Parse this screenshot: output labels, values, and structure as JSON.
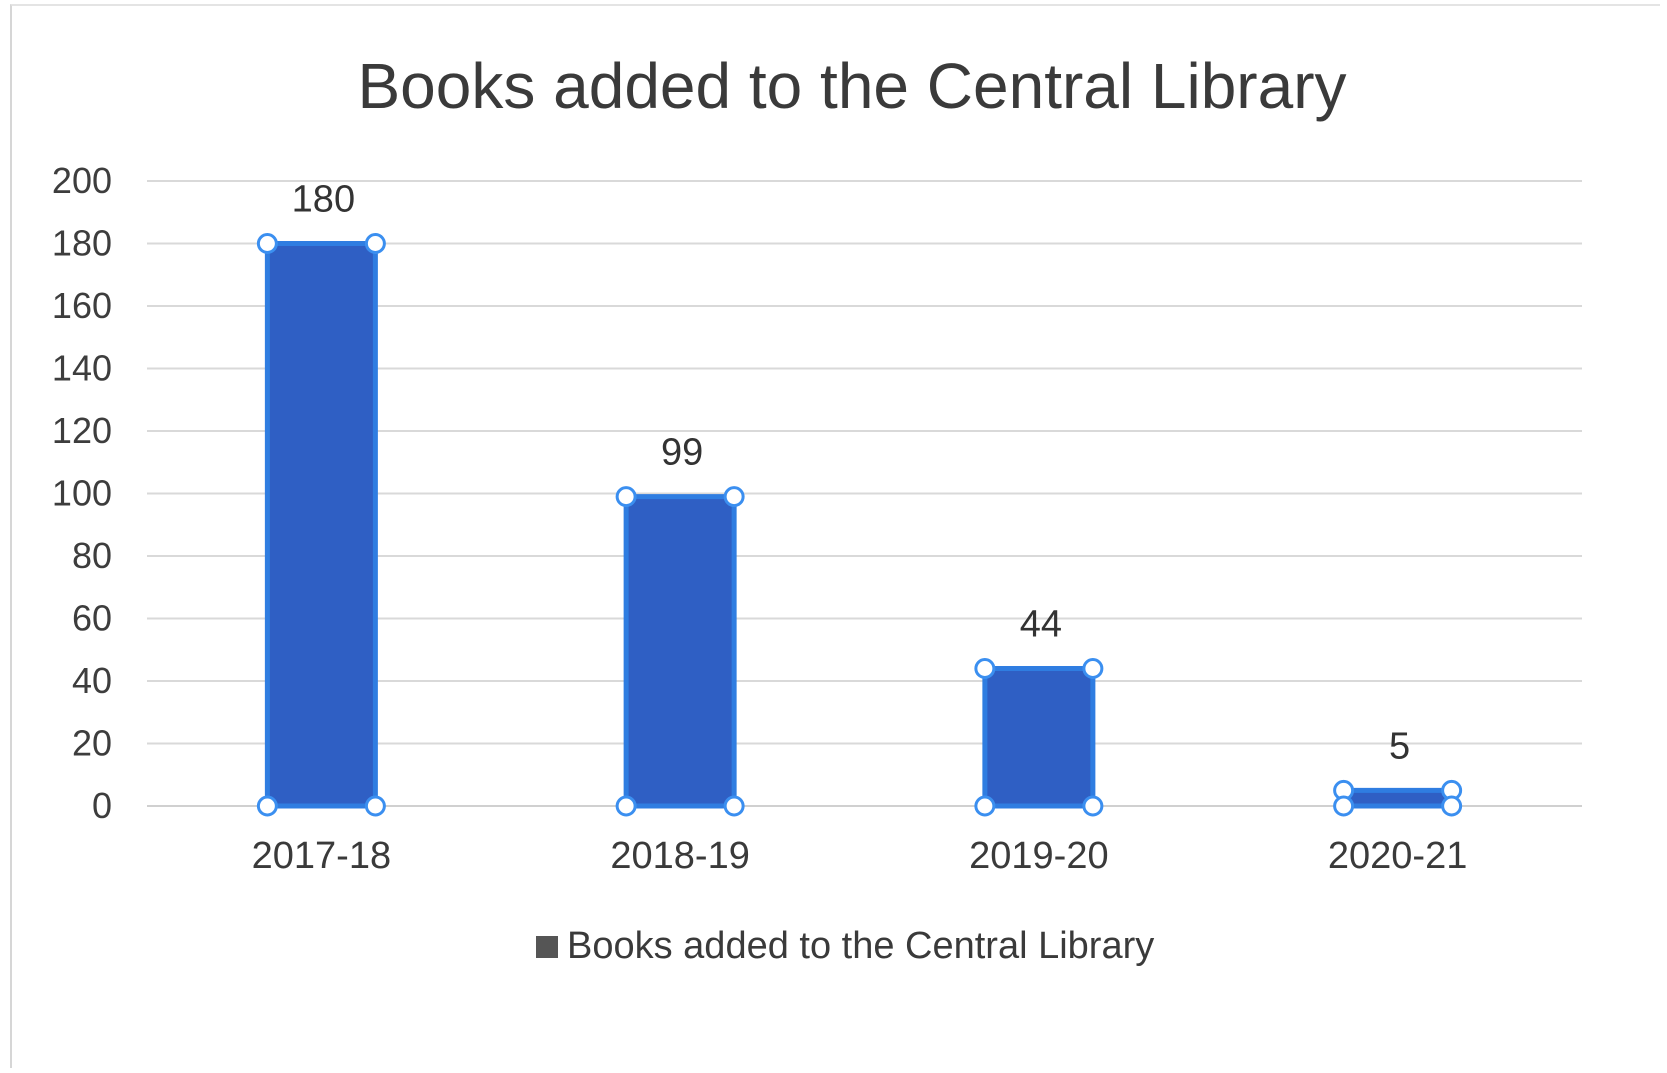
{
  "colors": {
    "bar_fill": "#2f5fc4",
    "bar_outline": "#2f7de1",
    "handle": "#3b8ff0",
    "legend_swatch": "#555555"
  },
  "chart_data": {
    "type": "bar",
    "title": "Books added to the Central Library",
    "xlabel": "",
    "ylabel": "",
    "categories": [
      "2017-18",
      "2018-19",
      "2019-20",
      "2020-21"
    ],
    "series": [
      {
        "name": "Books added to the Central Library",
        "values": [
          180,
          99,
          44,
          5
        ]
      }
    ],
    "data_labels": [
      "180",
      "99",
      "44",
      "5"
    ],
    "ylim": [
      0,
      200
    ],
    "yticks": [
      0,
      20,
      40,
      60,
      80,
      100,
      120,
      140,
      160,
      180,
      200
    ],
    "ytick_labels": [
      "0",
      "20",
      "40",
      "60",
      "80",
      "100",
      "120",
      "140",
      "160",
      "180",
      "200"
    ],
    "grid": true,
    "legend_position": "bottom",
    "selected": true
  }
}
